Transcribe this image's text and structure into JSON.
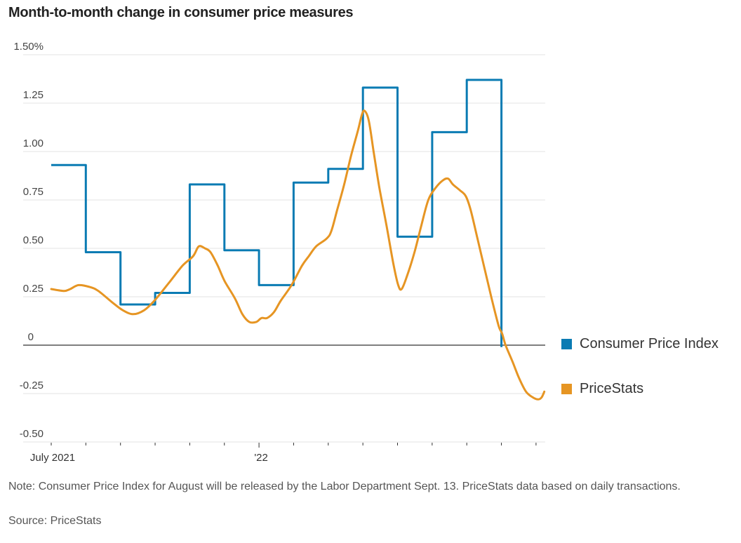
{
  "title": "Month-to-month change in consumer price measures",
  "note": "Note: Consumer Price Index for August will be released by the Labor Department Sept. 13. PriceStats data based on daily transactions.",
  "source": "Source: PriceStats",
  "colors": {
    "cpi": "#0a7bb3",
    "pricestats": "#e69523",
    "grid": "#e3e3e3",
    "zero": "#555555"
  },
  "legend": [
    {
      "label": "Consumer Price Index",
      "color": "#0a7bb3"
    },
    {
      "label": "PriceStats",
      "color": "#e69523"
    }
  ],
  "chart_data": {
    "type": "line",
    "title": "Month-to-month change in consumer price measures",
    "xlabel": "",
    "ylabel": "",
    "ylim": [
      -0.5,
      1.5
    ],
    "xlim_months": [
      0,
      14
    ],
    "y_ticks": [
      {
        "value": 1.5,
        "label": "1.50%"
      },
      {
        "value": 1.25,
        "label": "1.25"
      },
      {
        "value": 1.0,
        "label": "1.00"
      },
      {
        "value": 0.75,
        "label": "0.75"
      },
      {
        "value": 0.5,
        "label": "0.50"
      },
      {
        "value": 0.25,
        "label": "0.25"
      },
      {
        "value": 0,
        "label": "0"
      },
      {
        "value": -0.25,
        "label": "-0.25"
      },
      {
        "value": -0.5,
        "label": "-0.50"
      }
    ],
    "x_ticks": [
      {
        "month": 0,
        "label": "July 2021"
      },
      {
        "month": 1,
        "label": ""
      },
      {
        "month": 2,
        "label": ""
      },
      {
        "month": 3,
        "label": ""
      },
      {
        "month": 4,
        "label": ""
      },
      {
        "month": 5,
        "label": ""
      },
      {
        "month": 6,
        "label": "'22",
        "major": true
      },
      {
        "month": 7,
        "label": ""
      },
      {
        "month": 8,
        "label": ""
      },
      {
        "month": 9,
        "label": ""
      },
      {
        "month": 10,
        "label": ""
      },
      {
        "month": 11,
        "label": ""
      },
      {
        "month": 12,
        "label": ""
      },
      {
        "month": 13,
        "label": ""
      },
      {
        "month": 14,
        "label": ""
      }
    ],
    "grid": true,
    "legend_position": "right",
    "series": [
      {
        "name": "Consumer Price Index",
        "style": "step",
        "categories": [
          "Jul 2021",
          "Aug 2021",
          "Sep 2021",
          "Oct 2021",
          "Nov 2021",
          "Dec 2021",
          "Jan 2022",
          "Feb 2022",
          "Mar 2022",
          "Apr 2022",
          "May 2022",
          "Jun 2022",
          "Jul 2022"
        ],
        "values": [
          0.93,
          0.48,
          0.21,
          0.27,
          0.83,
          0.49,
          0.31,
          0.84,
          0.91,
          1.33,
          0.56,
          1.1,
          1.37
        ],
        "end_value": -0.01
      },
      {
        "name": "PriceStats",
        "style": "smooth",
        "points": [
          [
            0.0,
            0.29
          ],
          [
            0.37,
            0.28
          ],
          [
            0.55,
            0.29
          ],
          [
            0.79,
            0.31
          ],
          [
            1.12,
            0.3
          ],
          [
            1.36,
            0.28
          ],
          [
            1.77,
            0.22
          ],
          [
            2.07,
            0.18
          ],
          [
            2.37,
            0.16
          ],
          [
            2.68,
            0.18
          ],
          [
            2.98,
            0.23
          ],
          [
            3.39,
            0.32
          ],
          [
            3.79,
            0.41
          ],
          [
            4.1,
            0.46
          ],
          [
            4.26,
            0.51
          ],
          [
            4.44,
            0.5
          ],
          [
            4.6,
            0.48
          ],
          [
            4.81,
            0.41
          ],
          [
            5.01,
            0.33
          ],
          [
            5.31,
            0.24
          ],
          [
            5.52,
            0.16
          ],
          [
            5.72,
            0.12
          ],
          [
            5.92,
            0.12
          ],
          [
            6.07,
            0.14
          ],
          [
            6.23,
            0.14
          ],
          [
            6.43,
            0.17
          ],
          [
            6.63,
            0.23
          ],
          [
            6.94,
            0.31
          ],
          [
            7.24,
            0.41
          ],
          [
            7.44,
            0.46
          ],
          [
            7.65,
            0.51
          ],
          [
            7.95,
            0.55
          ],
          [
            8.09,
            0.59
          ],
          [
            8.26,
            0.7
          ],
          [
            8.46,
            0.83
          ],
          [
            8.66,
            0.98
          ],
          [
            8.86,
            1.11
          ],
          [
            8.97,
            1.19
          ],
          [
            9.05,
            1.21
          ],
          [
            9.17,
            1.16
          ],
          [
            9.31,
            1.0
          ],
          [
            9.47,
            0.82
          ],
          [
            9.68,
            0.62
          ],
          [
            9.88,
            0.42
          ],
          [
            10.02,
            0.31
          ],
          [
            10.12,
            0.29
          ],
          [
            10.28,
            0.36
          ],
          [
            10.49,
            0.48
          ],
          [
            10.69,
            0.62
          ],
          [
            10.89,
            0.75
          ],
          [
            11.09,
            0.81
          ],
          [
            11.3,
            0.85
          ],
          [
            11.46,
            0.86
          ],
          [
            11.6,
            0.83
          ],
          [
            11.8,
            0.8
          ],
          [
            11.97,
            0.77
          ],
          [
            12.11,
            0.7
          ],
          [
            12.31,
            0.55
          ],
          [
            12.52,
            0.39
          ],
          [
            12.72,
            0.24
          ],
          [
            12.92,
            0.1
          ],
          [
            13.02,
            0.06
          ],
          [
            13.12,
            0.0
          ],
          [
            13.31,
            -0.08
          ],
          [
            13.51,
            -0.17
          ],
          [
            13.71,
            -0.24
          ],
          [
            13.91,
            -0.27
          ],
          [
            14.06,
            -0.28
          ],
          [
            14.16,
            -0.27
          ],
          [
            14.24,
            -0.24
          ]
        ]
      }
    ]
  }
}
